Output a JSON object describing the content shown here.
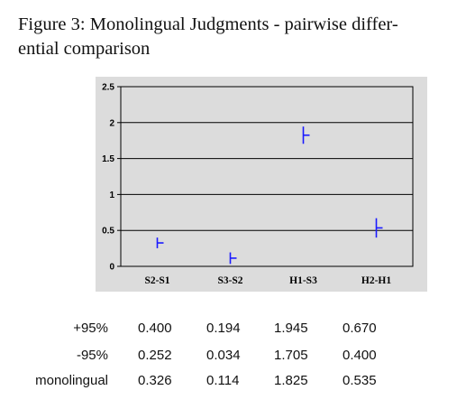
{
  "caption": {
    "line1": "Figure 3: Monolingual Judgments - pairwise differ-",
    "line2": "ential comparison"
  },
  "chart_data": {
    "type": "error-bar",
    "categories": [
      "S2-S1",
      "S3-S2",
      "H1-S3",
      "H2-H1"
    ],
    "series": [
      {
        "name": "+95%",
        "values": [
          0.4,
          0.194,
          1.945,
          0.67
        ]
      },
      {
        "name": "-95%",
        "values": [
          0.252,
          0.034,
          1.705,
          0.4
        ]
      },
      {
        "name": "monolingual",
        "values": [
          0.326,
          0.114,
          1.825,
          0.535
        ]
      }
    ],
    "y_ticks": [
      "0",
      "0.5",
      "1",
      "1.5",
      "2",
      "2.5"
    ],
    "ylim": [
      0,
      2.5
    ],
    "grid": true,
    "mark_color": "#1a1aff",
    "panel_color": "#dcdcdc"
  },
  "table": {
    "rows": [
      {
        "label": "+95%",
        "values": [
          "0.400",
          "0.194",
          "1.945",
          "0.670"
        ]
      },
      {
        "label": "-95%",
        "values": [
          "0.252",
          "0.034",
          "1.705",
          "0.400"
        ]
      },
      {
        "label": "monolingual",
        "values": [
          "0.326",
          "0.114",
          "1.825",
          "0.535"
        ]
      }
    ]
  }
}
